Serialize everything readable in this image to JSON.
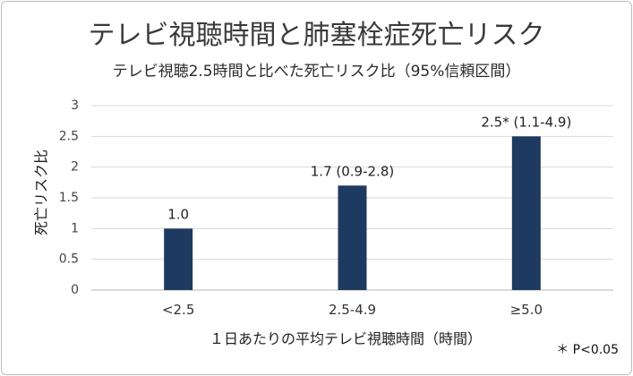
{
  "chart_data": {
    "type": "bar",
    "title": "テレビ視聴時間と肺塞栓症死亡リスク",
    "subtitle": "テレビ視聴2.5時間と比べた死亡リスク比（95%信頼区間）",
    "xlabel": "１日あたりの平均テレビ視聴時間（時間）",
    "ylabel": "死亡リスク比",
    "categories": [
      "<2.5",
      "2.5-4.9",
      "≥5.0"
    ],
    "values": [
      1.0,
      1.7,
      2.5
    ],
    "data_labels": [
      "1.0",
      "1.7 (0.9-2.8)",
      "2.5* (1.1-4.9)"
    ],
    "y_ticks": [
      "0",
      "0.5",
      "1",
      "1.5",
      "2",
      "2.5",
      "3"
    ],
    "ylim": [
      0,
      3
    ],
    "grid": true,
    "bar_color": "#1f3a60",
    "footnote": "＊ P<0.05"
  }
}
